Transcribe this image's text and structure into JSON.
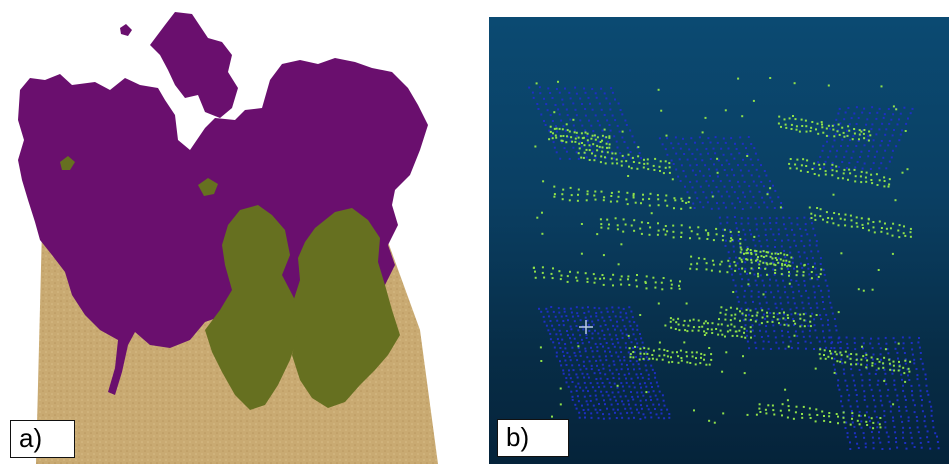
{
  "panel_a": {
    "label": "a)",
    "colors": {
      "ground": "#c9aa72",
      "tree_crown": "#6a0f6e",
      "shrub": "#667020"
    }
  },
  "panel_b": {
    "label": "b)",
    "colors": {
      "background_top": "#0b4a72",
      "background_bottom": "#05233a",
      "points_blue": "#1d2fc4",
      "points_green": "#8fe24a"
    }
  }
}
